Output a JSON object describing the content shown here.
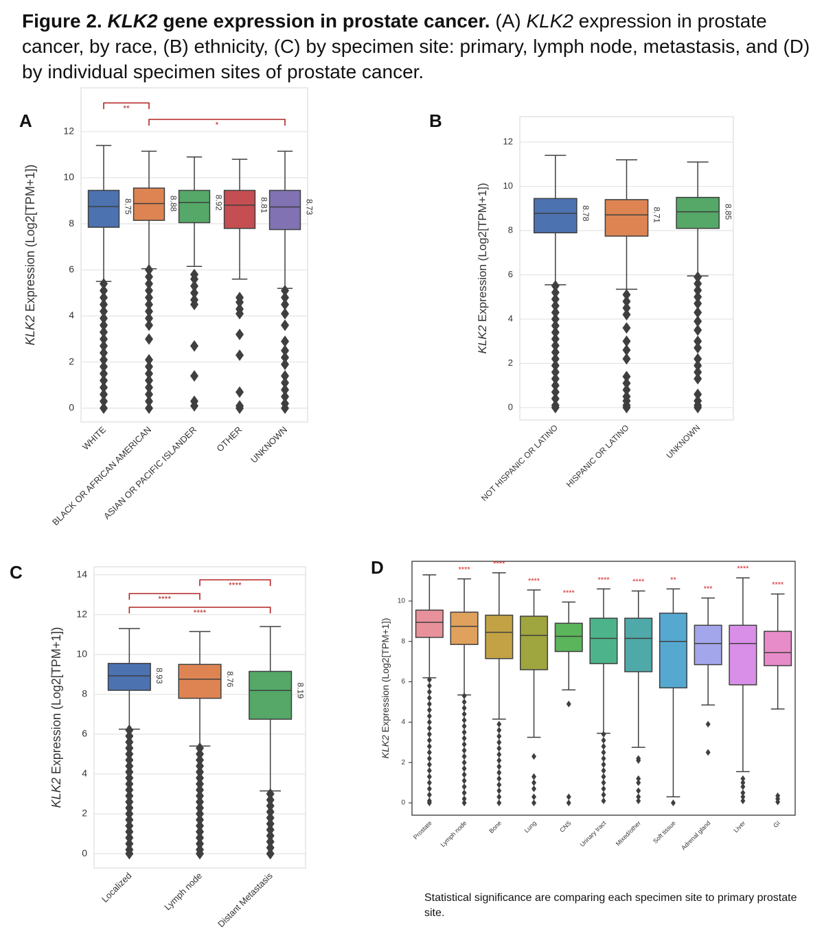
{
  "caption": [
    {
      "text": "Figure 2.",
      "style": "bold"
    },
    {
      "text": "KLK2",
      "style": "bold-italic"
    },
    {
      "text": "gene expression in prostate cancer.",
      "style": "bold"
    },
    {
      "text": "(A)",
      "style": "normal"
    },
    {
      "text": "KLK2",
      "style": "italic"
    },
    {
      "text": "expression in prostate cancer, by race, (B) ethnicity, (C) by specimen site: primary, lymph node, metastasis, and (D) by individual specimen sites of prostate cancer.",
      "style": "normal"
    }
  ],
  "chart_data": [
    {
      "type": "box",
      "panel": "A",
      "ylabel": [
        {
          "text": "KLK2",
          "style": "italic"
        },
        {
          "text": "Expression (Log2[TPM+1])",
          "style": "normal"
        }
      ],
      "categories": [
        "WHITE",
        "BLACK OR AFRICAN AMERICAN",
        "ASIAN OR PACIFIC ISLANDER",
        "OTHER",
        "UNKNOWN"
      ],
      "boxes": [
        {
          "whislo": 5.5,
          "q1": 7.85,
          "med": 8.75,
          "q3": 9.45,
          "whishi": 11.4,
          "color": "#4c72b0",
          "fliers": [
            5.4,
            5.1,
            4.8,
            4.5,
            4.2,
            3.9,
            3.6,
            3.3,
            3.0,
            2.7,
            2.4,
            2.1,
            1.8,
            1.5,
            1.2,
            0.9,
            0.6,
            0.3,
            0.0
          ]
        },
        {
          "whislo": 6.05,
          "q1": 8.15,
          "med": 8.88,
          "q3": 9.55,
          "whishi": 11.15,
          "color": "#dd8452",
          "fliers": [
            6.0,
            5.7,
            5.4,
            5.1,
            4.8,
            4.5,
            4.2,
            3.9,
            3.6,
            3.0,
            2.1,
            1.8,
            1.5,
            1.2,
            0.9,
            0.6,
            0.3,
            0.0
          ]
        },
        {
          "whislo": 6.15,
          "q1": 8.05,
          "med": 8.92,
          "q3": 9.45,
          "whishi": 10.9,
          "color": "#55a868",
          "fliers": [
            5.8,
            5.6,
            5.3,
            5.0,
            4.7,
            4.5,
            2.7,
            1.4,
            0.3,
            0.1
          ]
        },
        {
          "whislo": 5.6,
          "q1": 7.8,
          "med": 8.81,
          "q3": 9.45,
          "whishi": 10.8,
          "color": "#c44e52",
          "fliers": [
            4.8,
            4.6,
            4.3,
            4.1,
            3.2,
            2.3,
            0.7,
            0.1,
            0.0
          ]
        },
        {
          "whislo": 5.2,
          "q1": 7.75,
          "med": 8.73,
          "q3": 9.45,
          "whishi": 11.15,
          "color": "#8172b3",
          "fliers": [
            5.1,
            4.8,
            4.5,
            4.1,
            3.6,
            2.9,
            2.5,
            2.2,
            1.9,
            1.4,
            1.1,
            0.8,
            0.5,
            0.2,
            0.0
          ]
        }
      ],
      "ylim": [
        -0.6,
        13.9
      ],
      "yticks": [
        0,
        2,
        4,
        6,
        8,
        10,
        12
      ],
      "grid": true,
      "median_labels": true,
      "brackets": [
        {
          "between": [
            0,
            1
          ],
          "label": "**"
        },
        {
          "between": [
            1,
            4
          ],
          "label": "*"
        }
      ]
    },
    {
      "type": "box",
      "panel": "B",
      "ylabel": [
        {
          "text": "KLK2",
          "style": "italic"
        },
        {
          "text": "Expression (Log2[TPM+1])",
          "style": "normal"
        }
      ],
      "categories": [
        "NOT HISPANIC OR LATINO",
        "HISPANIC OR LATINO",
        "UNKNOWN"
      ],
      "boxes": [
        {
          "whislo": 5.55,
          "q1": 7.9,
          "med": 8.78,
          "q3": 9.45,
          "whishi": 11.4,
          "color": "#4c72b0",
          "fliers": [
            5.5,
            5.2,
            4.9,
            4.6,
            4.3,
            4.0,
            3.7,
            3.4,
            3.1,
            2.8,
            2.5,
            2.2,
            1.9,
            1.6,
            1.3,
            1.0,
            0.7,
            0.4,
            0.1,
            0.0
          ]
        },
        {
          "whislo": 5.35,
          "q1": 7.75,
          "med": 8.71,
          "q3": 9.4,
          "whishi": 11.2,
          "color": "#dd8452",
          "fliers": [
            5.1,
            4.8,
            4.5,
            4.2,
            3.6,
            3.0,
            2.6,
            2.2,
            1.4,
            1.1,
            0.8,
            0.5,
            0.3,
            0.1,
            0.0
          ]
        },
        {
          "whislo": 5.95,
          "q1": 8.1,
          "med": 8.85,
          "q3": 9.5,
          "whishi": 11.1,
          "color": "#55a868",
          "fliers": [
            5.9,
            5.6,
            5.3,
            5.0,
            4.7,
            4.3,
            3.9,
            3.5,
            3.0,
            2.7,
            2.2,
            1.9,
            1.6,
            1.3,
            0.6,
            0.3,
            0.1,
            0.0
          ]
        }
      ],
      "ylim": [
        -0.56,
        13.15
      ],
      "yticks": [
        0,
        2,
        4,
        6,
        8,
        10,
        12
      ],
      "grid": true,
      "median_labels": true
    },
    {
      "type": "box",
      "panel": "C",
      "ylabel": [
        {
          "text": "KLK2",
          "style": "italic"
        },
        {
          "text": "Expression (Log2[TPM+1])",
          "style": "normal"
        }
      ],
      "categories": [
        "Localized",
        "Lymph node",
        "Distant Metastasis"
      ],
      "boxes": [
        {
          "whislo": 6.25,
          "q1": 8.2,
          "med": 8.93,
          "q3": 9.55,
          "whishi": 11.3,
          "color": "#4c72b0",
          "fliers": [
            6.2,
            5.9,
            5.6,
            5.3,
            5.0,
            4.7,
            4.4,
            4.1,
            3.8,
            3.5,
            3.2,
            2.9,
            2.6,
            2.3,
            2.0,
            1.7,
            1.4,
            1.1,
            0.8,
            0.5,
            0.2,
            0.0
          ]
        },
        {
          "whislo": 5.4,
          "q1": 7.8,
          "med": 8.76,
          "q3": 9.5,
          "whishi": 11.15,
          "color": "#dd8452",
          "fliers": [
            5.3,
            5.0,
            4.7,
            4.4,
            4.1,
            3.8,
            3.5,
            3.2,
            2.9,
            2.6,
            2.3,
            2.0,
            1.7,
            1.4,
            1.1,
            0.8,
            0.5,
            0.2,
            0.0
          ]
        },
        {
          "whislo": 3.15,
          "q1": 6.75,
          "med": 8.19,
          "q3": 9.15,
          "whishi": 11.4,
          "color": "#55a868",
          "fliers": [
            3.0,
            2.7,
            2.4,
            2.1,
            1.8,
            1.5,
            1.2,
            0.9,
            0.6,
            0.3,
            0.0
          ]
        }
      ],
      "ylim": [
        -0.72,
        14.4
      ],
      "yticks": [
        0,
        2,
        4,
        6,
        8,
        10,
        12,
        14
      ],
      "grid": true,
      "median_labels": true,
      "brackets": [
        {
          "between": [
            1,
            2
          ],
          "label": "****"
        },
        {
          "between": [
            0,
            1
          ],
          "label": "****"
        },
        {
          "between": [
            0,
            2
          ],
          "label": "****"
        }
      ]
    },
    {
      "type": "box",
      "panel": "D",
      "ylabel": [
        {
          "text": "KLK2",
          "style": "italic"
        },
        {
          "text": "Expression (Log2[TPM+1])",
          "style": "normal"
        }
      ],
      "categories": [
        "Prostate",
        "Lymph node",
        "Bone",
        "Lung",
        "CNS",
        "Urinary tract",
        "Mixed/other",
        "Soft tissue",
        "Adrenal gland",
        "Liver",
        "GI"
      ],
      "boxes": [
        {
          "whislo": 6.2,
          "q1": 8.2,
          "med": 8.95,
          "q3": 9.55,
          "whishi": 11.3,
          "color": "#e8919b",
          "fliers": [
            6.1,
            5.8,
            5.5,
            5.2,
            4.9,
            4.6,
            4.3,
            4.0,
            3.7,
            3.4,
            3.1,
            2.8,
            2.5,
            2.2,
            1.9,
            1.6,
            1.3,
            1.0,
            0.7,
            0.4,
            0.1,
            0.0
          ]
        },
        {
          "whislo": 5.35,
          "q1": 7.85,
          "med": 8.75,
          "q3": 9.45,
          "whishi": 11.1,
          "color": "#e0a15c",
          "fliers": [
            5.3,
            5.0,
            4.7,
            4.4,
            4.1,
            3.8,
            3.5,
            3.2,
            2.9,
            2.6,
            2.3,
            2.0,
            1.7,
            1.4,
            1.1,
            0.8,
            0.5,
            0.2,
            0.0
          ]
        },
        {
          "whislo": 4.15,
          "q1": 7.15,
          "med": 8.45,
          "q3": 9.3,
          "whishi": 11.4,
          "color": "#c2a244",
          "fliers": [
            3.9,
            3.6,
            3.3,
            3.0,
            2.7,
            2.4,
            2.1,
            1.8,
            1.5,
            1.2,
            0.9,
            0.6,
            0.3,
            0.0
          ]
        },
        {
          "whislo": 3.25,
          "q1": 6.6,
          "med": 8.3,
          "q3": 9.25,
          "whishi": 10.55,
          "color": "#9fa53f",
          "fliers": [
            2.3,
            1.3,
            1.0,
            0.7,
            0.3,
            0.0
          ]
        },
        {
          "whislo": 5.6,
          "q1": 7.5,
          "med": 8.25,
          "q3": 8.9,
          "whishi": 9.95,
          "color": "#5bb55b",
          "fliers": [
            4.9,
            0.3,
            0.0
          ]
        },
        {
          "whislo": 3.45,
          "q1": 6.9,
          "med": 8.15,
          "q3": 9.15,
          "whishi": 10.6,
          "color": "#4db38a",
          "fliers": [
            3.4,
            3.1,
            2.8,
            2.5,
            2.2,
            1.9,
            1.6,
            1.3,
            1.0,
            0.7,
            0.4,
            0.1
          ]
        },
        {
          "whislo": 2.75,
          "q1": 6.5,
          "med": 8.15,
          "q3": 9.15,
          "whishi": 10.5,
          "color": "#4fa9a8",
          "fliers": [
            2.2,
            2.1,
            1.2,
            1.0,
            0.6,
            0.3,
            0.1
          ]
        },
        {
          "whislo": 0.3,
          "q1": 5.7,
          "med": 8.0,
          "q3": 9.4,
          "whishi": 10.6,
          "color": "#55a9d0",
          "fliers": [
            0.0
          ]
        },
        {
          "whislo": 4.85,
          "q1": 6.85,
          "med": 7.9,
          "q3": 8.8,
          "whishi": 10.15,
          "color": "#a4a6eb",
          "fliers": [
            3.9,
            2.5
          ]
        },
        {
          "whislo": 1.55,
          "q1": 5.85,
          "med": 7.9,
          "q3": 8.8,
          "whishi": 11.15,
          "color": "#d98ee8",
          "fliers": [
            1.2,
            1.0,
            0.8,
            0.5,
            0.3,
            0.1
          ]
        },
        {
          "whislo": 4.65,
          "q1": 6.8,
          "med": 7.45,
          "q3": 8.5,
          "whishi": 10.35,
          "color": "#e88cc9",
          "fliers": [
            0.35,
            0.2,
            0.05
          ]
        }
      ],
      "significance": [
        null,
        "****",
        "****",
        "****",
        "****",
        "****",
        "****",
        "**",
        "***",
        "****",
        "****"
      ],
      "ylim": [
        -0.61,
        11.97
      ],
      "yticks": [
        0,
        2,
        4,
        6,
        8,
        10
      ],
      "grid": false,
      "median_labels": false
    }
  ],
  "footnote": "Statistical significance are comparing each specimen site to primary prostate site."
}
